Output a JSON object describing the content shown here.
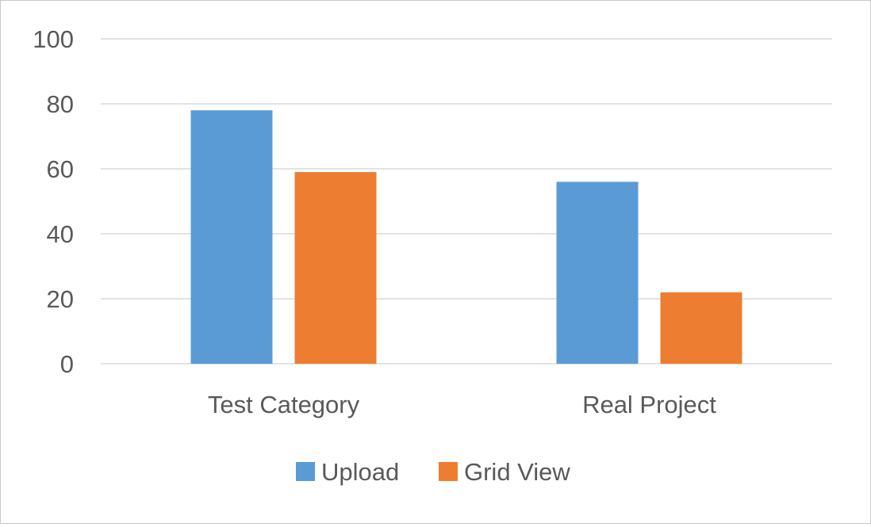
{
  "chart_data": {
    "type": "bar",
    "title": "",
    "xlabel": "",
    "ylabel": "",
    "categories": [
      "Test Category",
      "Real Project"
    ],
    "series": [
      {
        "name": "Upload",
        "values": [
          78,
          56
        ]
      },
      {
        "name": "Grid View",
        "values": [
          59,
          22
        ]
      }
    ],
    "ylim": [
      0,
      100
    ],
    "yticks": [
      0,
      20,
      40,
      60,
      80,
      100
    ],
    "ytick_labels": [
      "0",
      "20",
      "40",
      "60",
      "80",
      "100"
    ],
    "grid": true,
    "legend_position": "bottom",
    "colors": [
      "#5b9bd5",
      "#ed7d31"
    ]
  }
}
